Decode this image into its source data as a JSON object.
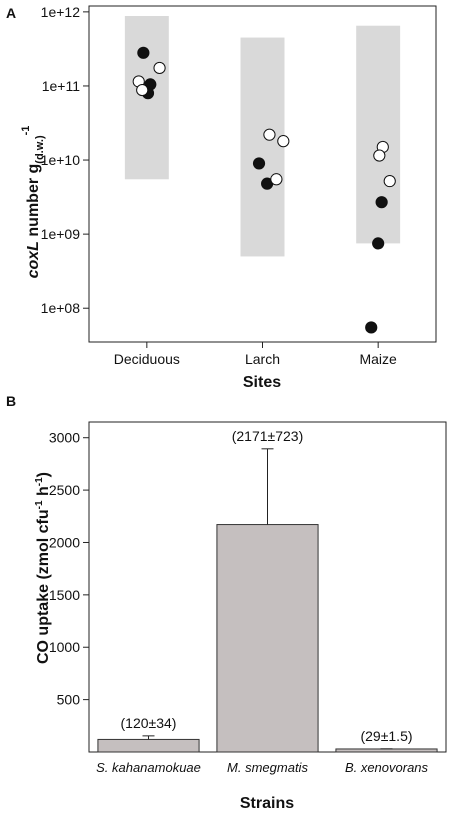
{
  "chart_data": [
    {
      "panel": "A",
      "type": "scatter",
      "xlabel": "Sites",
      "ylabel": "coxL number g(d.w.)-1",
      "ylabel_parts": {
        "italic": "cox",
        "italic_letter": "L",
        "main": " number g",
        "sub": "(d.w.)",
        "sup": "-1"
      },
      "yscale": "log",
      "ylim": [
        35000000.0,
        1200000000000.0
      ],
      "yticks": [
        {
          "value": 100000000.0,
          "label": "1e+08"
        },
        {
          "value": 1000000000.0,
          "label": "1e+09"
        },
        {
          "value": 10000000000.0,
          "label": "1e+10"
        },
        {
          "value": 100000000000.0,
          "label": "1e+11"
        },
        {
          "value": 1000000000000.0,
          "label": "1e+12"
        }
      ],
      "categories": [
        "Deciduous",
        "Larch",
        "Maize"
      ],
      "ranges": [
        {
          "category": "Deciduous",
          "low": 5500000000.0,
          "high": 5500000000000.0
        },
        {
          "category": "Larch",
          "low": 500000000.0,
          "high": 450000000000.0
        },
        {
          "category": "Maize",
          "low": 750000000.0,
          "high": 650000000000.0
        }
      ],
      "grid": false,
      "legend": "none",
      "series": [
        {
          "marker": "filled",
          "points": [
            {
              "category": "Deciduous",
              "offset": -0.03,
              "y": 280000000000.0
            },
            {
              "category": "Deciduous",
              "offset": 0.03,
              "y": 105000000000.0
            },
            {
              "category": "Deciduous",
              "offset": 0.01,
              "y": 80000000000.0
            },
            {
              "category": "Larch",
              "offset": -0.03,
              "y": 9000000000.0
            },
            {
              "category": "Larch",
              "offset": 0.04,
              "y": 4800000000.0
            },
            {
              "category": "Maize",
              "offset": 0.03,
              "y": 2700000000.0
            },
            {
              "category": "Maize",
              "offset": 0.0,
              "y": 750000000.0
            },
            {
              "category": "Maize",
              "offset": -0.06,
              "y": 55000000.0
            }
          ]
        },
        {
          "marker": "open",
          "points": [
            {
              "category": "Deciduous",
              "offset": -0.07,
              "y": 115000000000.0
            },
            {
              "category": "Deciduous",
              "offset": -0.04,
              "y": 88000000000.0
            },
            {
              "category": "Deciduous",
              "offset": 0.11,
              "y": 175000000000.0
            },
            {
              "category": "Larch",
              "offset": 0.06,
              "y": 22000000000.0
            },
            {
              "category": "Larch",
              "offset": 0.18,
              "y": 18000000000.0
            },
            {
              "category": "Larch",
              "offset": 0.12,
              "y": 5500000000.0
            },
            {
              "category": "Maize",
              "offset": 0.04,
              "y": 15000000000.0
            },
            {
              "category": "Maize",
              "offset": 0.01,
              "y": 11500000000.0
            },
            {
              "category": "Maize",
              "offset": 0.1,
              "y": 5200000000.0
            }
          ]
        }
      ],
      "colors": {
        "range_fill": "#d9d9d9",
        "filled": "#111111",
        "open_fill": "#ffffff",
        "marker_edge": "#111111"
      }
    },
    {
      "panel": "B",
      "type": "bar",
      "xlabel": "Strains",
      "ylabel": "CO uptake (zmol cfu-1 h-1)",
      "ylabel_parts": {
        "a": "CO uptake (zmol cfu",
        "sup1": "-1",
        "b": " h",
        "sup2": "-1",
        "c": ")"
      },
      "ylim": [
        0,
        3150
      ],
      "yticks": [
        500,
        1000,
        1500,
        2000,
        2500,
        3000
      ],
      "categories": [
        "S. kahanamokuae",
        "M. smegmatis",
        "B. xenovorans"
      ],
      "values": [
        120,
        2171,
        29
      ],
      "errors": [
        34,
        723,
        1.5
      ],
      "labels": [
        "(120±34)",
        "(2171±723)",
        "(29±1.5)"
      ],
      "grid": false,
      "legend": "none",
      "colors": {
        "bar_fill": "#c5bfbf",
        "bar_edge": "#333333"
      }
    }
  ]
}
